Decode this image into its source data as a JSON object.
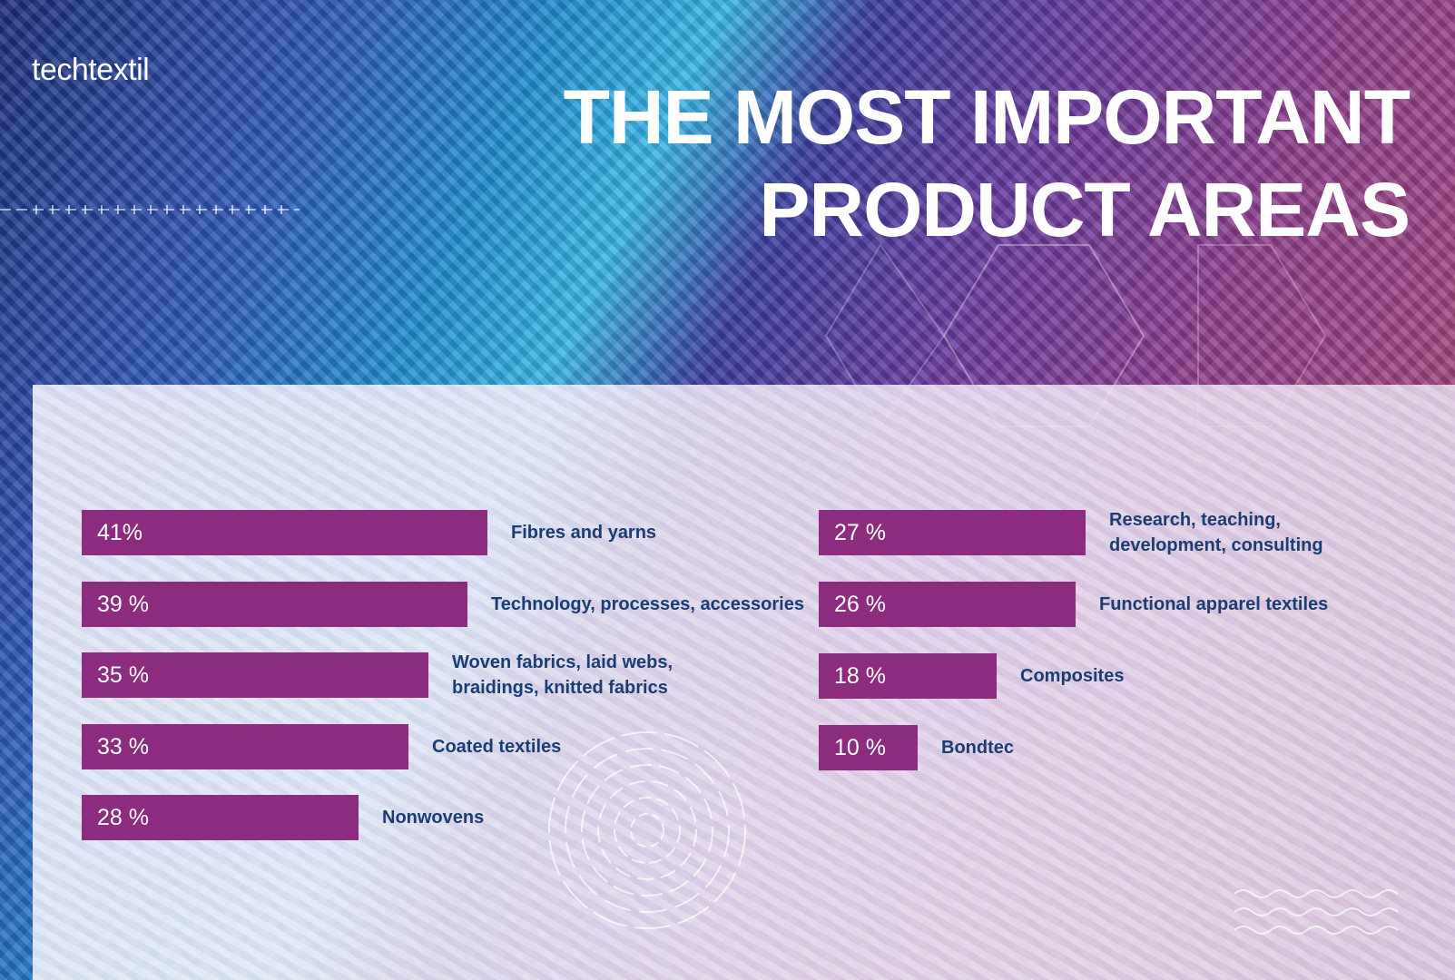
{
  "brand": {
    "logo_text": "techtextil"
  },
  "header": {
    "title_line1": "THE MOST IMPORTANT",
    "title_line2": "PRODUCT AREAS"
  },
  "colors": {
    "bar": "#8b2c7e",
    "label": "#1a3d74",
    "value_text": "#ffffff"
  },
  "chart_data": {
    "type": "bar",
    "orientation": "horizontal",
    "title": "THE MOST IMPORTANT PRODUCT AREAS",
    "unit": "%",
    "xlim": [
      0,
      100
    ],
    "columns": [
      {
        "column": "left",
        "items": [
          {
            "value": 41,
            "value_label": "41%",
            "label": [
              "Fibres and yarns"
            ]
          },
          {
            "value": 39,
            "value_label": "39 %",
            "label": [
              "Technology, processes, accessories"
            ]
          },
          {
            "value": 35,
            "value_label": "35 %",
            "label": [
              "Woven fabrics, laid webs,",
              "braidings, knitted fabrics"
            ]
          },
          {
            "value": 33,
            "value_label": "33 %",
            "label": [
              "Coated textiles"
            ]
          },
          {
            "value": 28,
            "value_label": "28 %",
            "label": [
              "Nonwovens"
            ]
          }
        ]
      },
      {
        "column": "right",
        "items": [
          {
            "value": 27,
            "value_label": "27 %",
            "label": [
              "Research, teaching,",
              "development, consulting"
            ]
          },
          {
            "value": 26,
            "value_label": "26 %",
            "label": [
              "Functional apparel textiles"
            ]
          },
          {
            "value": 18,
            "value_label": "18 %",
            "label": [
              "Composites"
            ]
          },
          {
            "value": 10,
            "value_label": "10 %",
            "label": [
              "Bondtec"
            ]
          }
        ]
      }
    ]
  }
}
